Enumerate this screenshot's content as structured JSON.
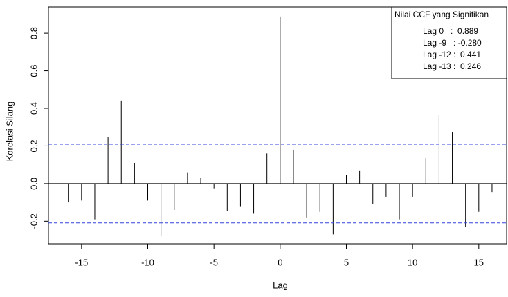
{
  "chart_data": {
    "type": "ccf",
    "x_label": "Lag",
    "y_label": "Korelasi Silang",
    "x": [
      -16,
      -15,
      -14,
      -13,
      -12,
      -11,
      -10,
      -9,
      -8,
      -7,
      -6,
      -5,
      -4,
      -3,
      -2,
      -1,
      0,
      1,
      2,
      3,
      4,
      5,
      6,
      7,
      8,
      9,
      10,
      11,
      12,
      13,
      14,
      15,
      16
    ],
    "values": [
      -0.1,
      -0.09,
      -0.19,
      0.246,
      0.441,
      0.11,
      -0.09,
      -0.28,
      -0.14,
      0.06,
      0.03,
      -0.025,
      -0.145,
      -0.12,
      -0.16,
      0.16,
      0.889,
      0.18,
      -0.18,
      -0.15,
      -0.27,
      0.045,
      0.07,
      -0.11,
      -0.07,
      -0.19,
      -0.07,
      0.135,
      0.365,
      0.275,
      -0.23,
      -0.15,
      -0.045
    ],
    "color": "#000000",
    "xlim": [
      -17.5,
      17.1
    ],
    "ylim": [
      -0.32,
      0.94
    ],
    "xticks": [
      -15,
      -10,
      -5,
      0,
      5,
      10,
      15
    ],
    "yticks": [
      -0.2,
      {
        "value": 0,
        "label": "0.0"
      },
      0.2,
      0.4,
      0.6,
      0.8
    ],
    "confidence_lines": [
      0.209,
      -0.209
    ],
    "confidence_color": "#3344dd",
    "legend": {
      "title": "Nilai CCF yang Signifikan",
      "entries": [
        "Lag 0   :  0.889",
        "Lag -9   : -0.280",
        "Lag -12 :  0.441",
        "Lag -13 :  0,246"
      ]
    }
  }
}
